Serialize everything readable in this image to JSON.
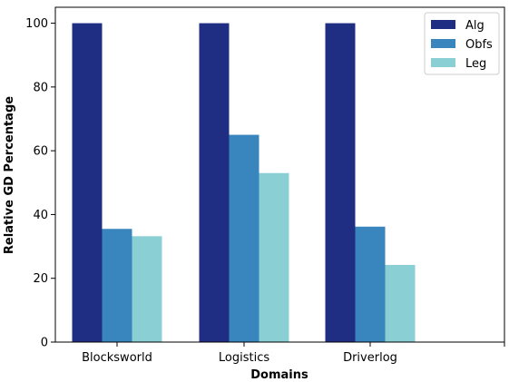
{
  "chart_data": {
    "type": "bar",
    "categories": [
      "Blocksworld",
      "Logistics",
      "Driverlog"
    ],
    "series": [
      {
        "name": "Alg",
        "values": [
          100,
          100,
          100
        ],
        "color": "#1f2d82"
      },
      {
        "name": "Obfs",
        "values": [
          35.5,
          65,
          36.2
        ],
        "color": "#3886bd"
      },
      {
        "name": "Leg",
        "values": [
          33.2,
          53,
          24.2
        ],
        "color": "#89cfd4"
      }
    ],
    "xlabel": "Domains",
    "ylabel": "Relative GD Percentage",
    "ylim": [
      0,
      105
    ],
    "yticks": [
      "0",
      "20",
      "40",
      "60",
      "80",
      "100"
    ],
    "legend_position": "top-right",
    "grid": false
  }
}
